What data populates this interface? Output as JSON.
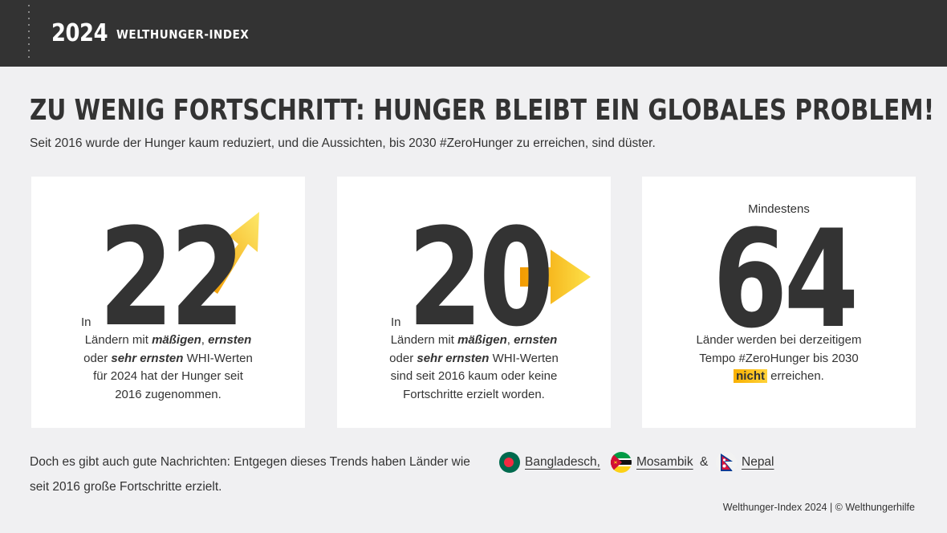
{
  "header": {
    "year": "2024",
    "brand": "WELTHUNGER-INDEX"
  },
  "title": "ZU WENIG FORTSCHRITT: HUNGER BLEIBT EIN GLOBALES PROBLEM!",
  "subtitle": "Seit 2016 wurde der Hunger kaum reduziert, und die Aussichten, bis 2030 #ZeroHunger zu erreichen, sind düster.",
  "cards": [
    {
      "prefix": "In",
      "number": "22",
      "trend": "increasing",
      "line1_pre": "Ländern mit ",
      "line1_b1": "mäßigen",
      "line1_sep": ", ",
      "line1_b2": "ernsten",
      "line2_pre": "oder ",
      "line2_b": "sehr ernsten",
      "line2_post": " WHI-Werten",
      "line3": "für 2024 hat der Hunger seit",
      "line4": "2016 zugenommen."
    },
    {
      "prefix": "In",
      "number": "20",
      "trend": "stagnating",
      "line1_pre": "Ländern mit ",
      "line1_b1": "mäßigen",
      "line1_sep": ", ",
      "line1_b2": "ernsten",
      "line2_pre": "oder ",
      "line2_b": "sehr ernsten",
      "line2_post": " WHI-Werten",
      "line3": "sind seit 2016 kaum oder keine",
      "line4": "Fortschritte erzielt worden."
    },
    {
      "prefix": "Mindestens",
      "number": "64",
      "line1": "Länder werden bei derzeitigem",
      "line2": "Tempo #ZeroHunger bis 2030",
      "highlight": "nicht",
      "line3_post": " erreichen."
    }
  ],
  "bottom": {
    "text_pre": "Doch es gibt auch gute Nachrichten: Entgegen dieses Trends haben Länder wie",
    "countries": [
      "Bangladesch,",
      "Mosambik",
      "Nepal"
    ],
    "amp": "&",
    "text_post": "seit 2016 große Fortschritte erzielt."
  },
  "footer": "Welthunger-Index 2024 | © Welthungerhilfe",
  "colors": {
    "header_bg": "#333333",
    "page_bg": "#f0f0f2",
    "accent": "#f9b000",
    "text": "#333333"
  }
}
